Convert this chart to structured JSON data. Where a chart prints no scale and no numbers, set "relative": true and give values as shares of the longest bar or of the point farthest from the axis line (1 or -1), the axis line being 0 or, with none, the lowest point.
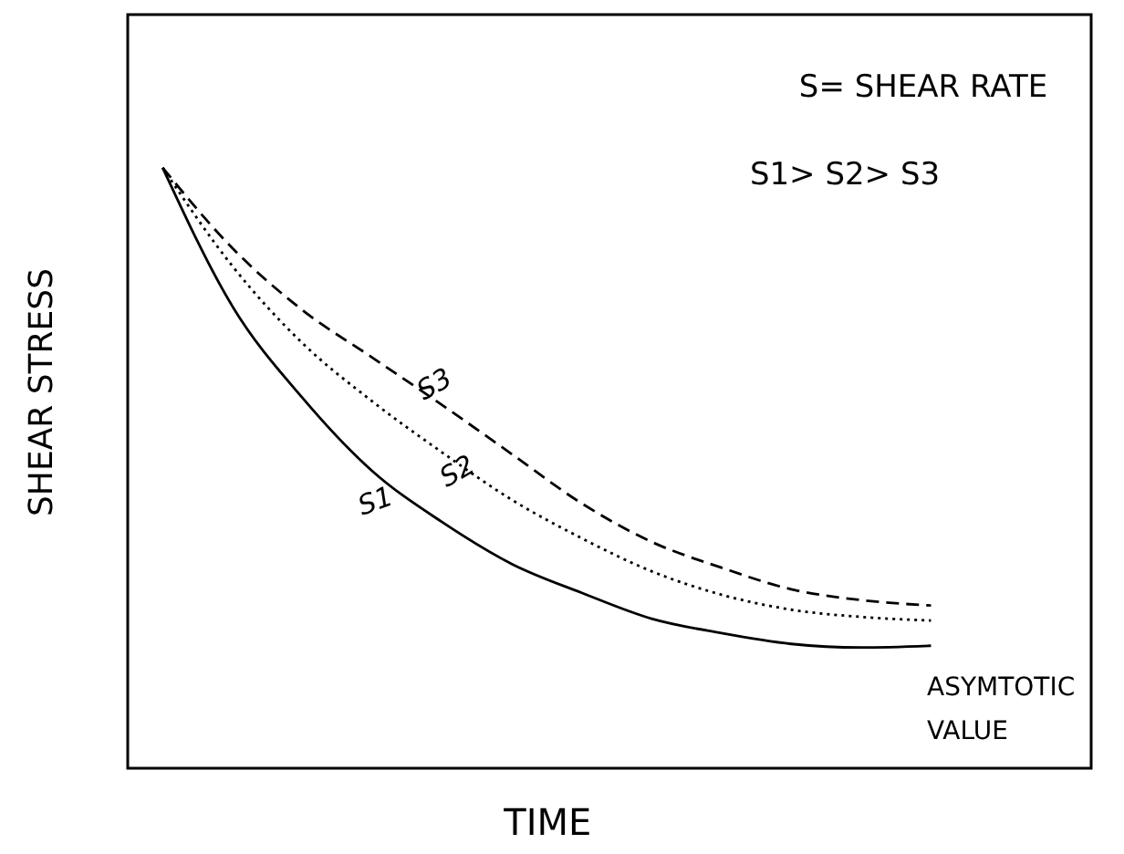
{
  "chart_data": {
    "type": "line",
    "relative": true,
    "xlabel": "TIME",
    "ylabel": "SHEAR STRESS",
    "categories": [
      null,
      null,
      null,
      null,
      null,
      null,
      null,
      null,
      null,
      null,
      null,
      null
    ],
    "series": [
      {
        "name": "S1",
        "color": "#000000",
        "line_style": "solid",
        "values": [
          1,
          0.769,
          0.617,
          0.495,
          0.41,
          0.34,
          0.292,
          0.249,
          0.225,
          0.207,
          0.201,
          0.204
        ]
      },
      {
        "name": "S2",
        "color": "#000000",
        "line_style": "dotted",
        "values": [
          1,
          0.836,
          0.708,
          0.611,
          0.526,
          0.447,
          0.383,
          0.328,
          0.289,
          0.264,
          0.252,
          0.246
        ]
      },
      {
        "name": "S3",
        "color": "#000000",
        "line_style": "dashed",
        "values": [
          1,
          0.866,
          0.763,
          0.684,
          0.605,
          0.523,
          0.441,
          0.377,
          0.334,
          0.298,
          0.28,
          0.271
        ]
      }
    ],
    "annotations": [
      "S= SHEAR RATE",
      "S1> S2> S3",
      "ASYMTOTIC\nVALUE"
    ],
    "marker": "none",
    "grid": false
  }
}
